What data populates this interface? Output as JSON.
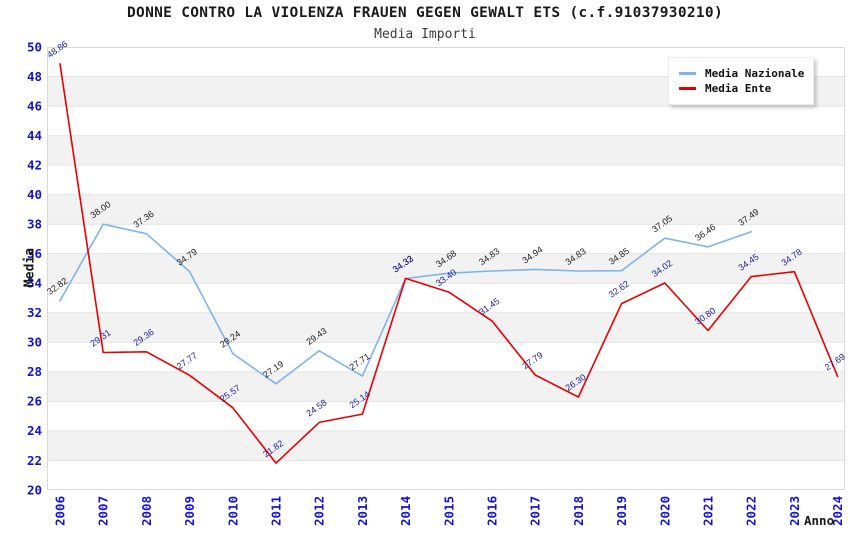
{
  "header": {
    "title": "DONNE CONTRO LA VIOLENZA FRAUEN GEGEN GEWALT ETS (c.f.91037930210)",
    "subtitle": "Media Importi"
  },
  "chart_data": {
    "type": "line",
    "title": "DONNE CONTRO LA VIOLENZA FRAUEN GEGEN GEWALT ETS (c.f.91037930210)",
    "subtitle": "Media Importi",
    "xlabel": "Anno",
    "ylabel": "Media",
    "ylim": [
      20,
      50
    ],
    "ytick_step": 2,
    "grid": "horizontal-bands",
    "legend_position": "top-right",
    "band_color": "#F2F2F2",
    "gridline_color": "#E4E4E4",
    "plot_border_color": "#D9D9D9",
    "tick_label_color": "#1414CE",
    "categories": [
      2006,
      2007,
      2008,
      2009,
      2010,
      2011,
      2012,
      2013,
      2014,
      2015,
      2016,
      2017,
      2018,
      2019,
      2020,
      2021,
      2022,
      2023,
      2024
    ],
    "series": [
      {
        "name": "Media Nazionale",
        "color": "#7CB5EC",
        "label_color": "#1a1a1a",
        "values": [
          32.82,
          38.0,
          37.36,
          34.79,
          29.24,
          27.19,
          29.43,
          27.71,
          34.32,
          34.68,
          34.83,
          34.94,
          34.83,
          34.85,
          37.05,
          36.46,
          37.49,
          null,
          null
        ]
      },
      {
        "name": "Media Ente",
        "color": "#E80000",
        "label_color": "#1a1a99",
        "values": [
          48.86,
          29.31,
          29.36,
          27.77,
          25.57,
          21.82,
          24.58,
          25.14,
          34.33,
          33.4,
          31.45,
          27.79,
          26.3,
          32.62,
          34.02,
          30.8,
          34.45,
          34.78,
          27.69
        ]
      }
    ]
  }
}
